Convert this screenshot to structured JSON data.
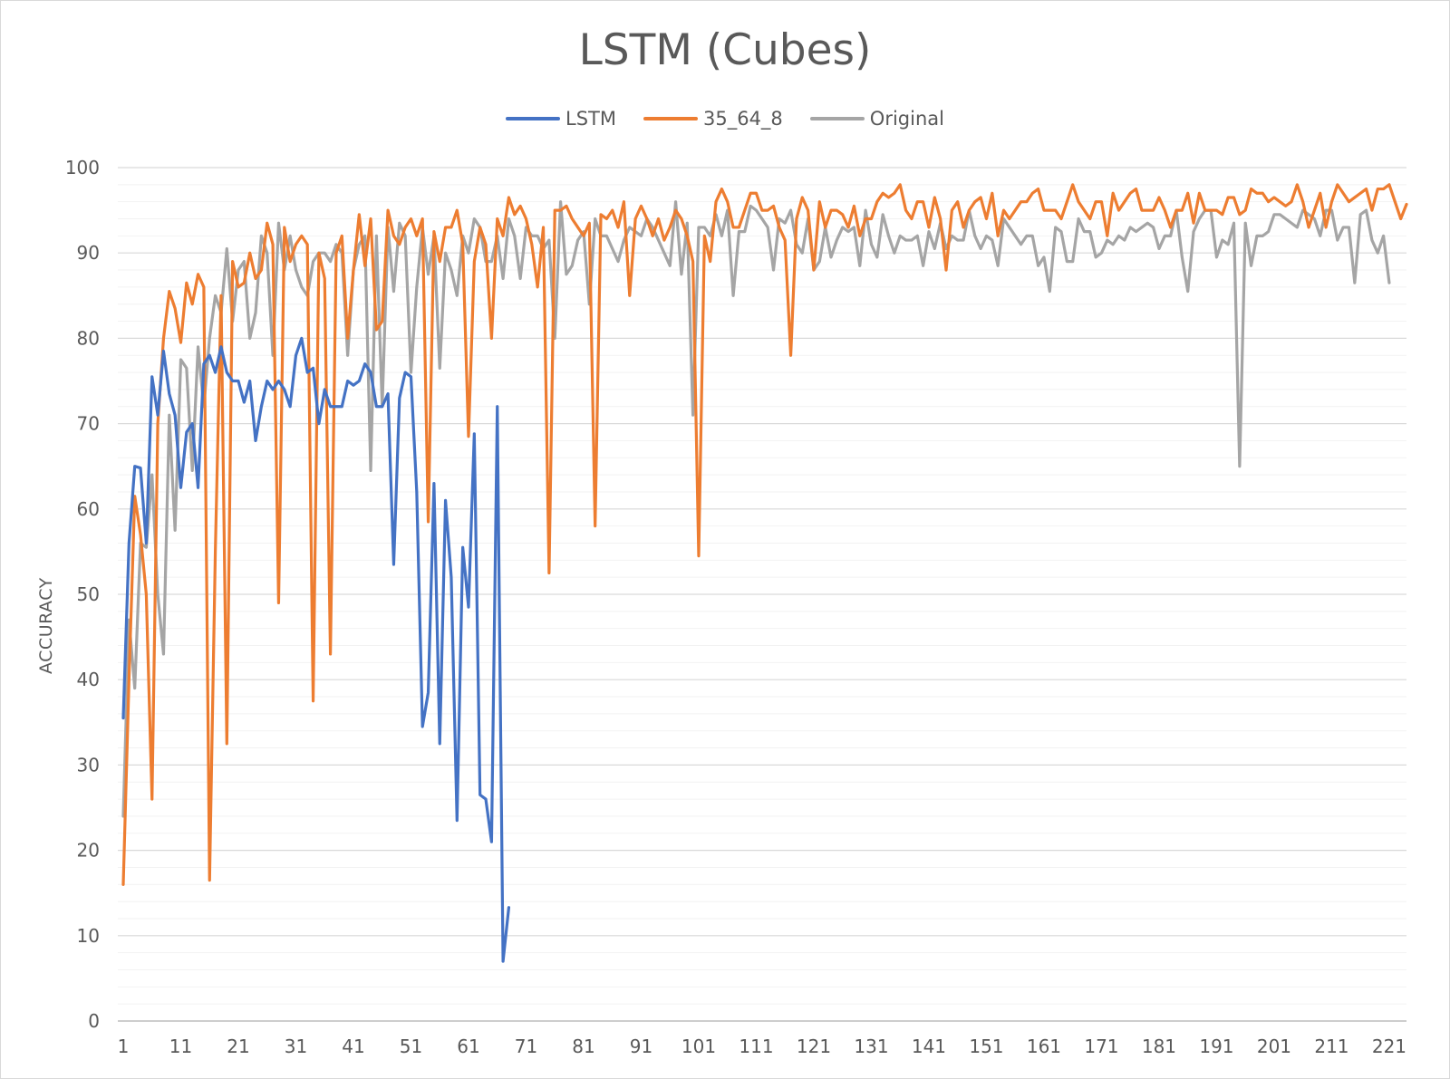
{
  "chart_data": {
    "type": "line",
    "title": "LSTM (Cubes)",
    "xlabel": "",
    "ylabel": "ACCURACY",
    "ylim": [
      0,
      100
    ],
    "xlim": [
      1,
      224
    ],
    "y_ticks": [
      0,
      10,
      20,
      30,
      40,
      50,
      60,
      70,
      80,
      90,
      100
    ],
    "x_tick_labels": [
      "1",
      "11",
      "21",
      "31",
      "41",
      "51",
      "61",
      "71",
      "81",
      "91",
      "101",
      "111",
      "121",
      "131",
      "141",
      "151",
      "161",
      "171",
      "181",
      "191",
      "201",
      "211",
      "221"
    ],
    "grid": "horizontal major and minor",
    "legend_position": "top",
    "series": [
      {
        "name": "LSTM",
        "color": "#4472C4",
        "x_start": 1,
        "values": [
          35.5,
          56,
          65,
          64.8,
          56,
          75.5,
          71,
          78.5,
          73.5,
          71,
          62.5,
          69,
          70,
          62.5,
          77,
          78,
          76,
          79,
          76,
          75,
          75,
          72.5,
          75,
          68,
          72,
          75,
          74,
          75,
          74,
          72,
          78,
          80,
          76,
          76.5,
          70,
          74,
          72,
          72,
          72,
          75,
          74.5,
          75,
          77,
          76,
          72,
          72,
          73.5,
          53.5,
          73,
          76,
          75.5,
          62,
          34.5,
          38.5,
          63,
          32.5,
          61,
          52,
          23.5,
          55.5,
          48.5,
          68.8,
          26.5,
          26,
          21,
          72,
          7,
          13.3
        ]
      },
      {
        "name": "35_64_8",
        "color": "#ED7D31",
        "x_start": 1,
        "values": [
          16,
          40,
          61.5,
          57,
          50,
          26,
          70,
          80,
          85.5,
          83.5,
          79.5,
          86.5,
          84,
          87.5,
          86,
          16.5,
          55,
          85,
          32.5,
          89,
          86,
          86.5,
          90,
          87,
          88,
          93.5,
          91,
          49,
          93,
          89,
          91,
          92,
          91,
          37.5,
          90,
          87,
          43,
          90,
          92,
          80,
          88,
          94.5,
          88.5,
          94,
          81,
          82,
          95,
          92,
          91,
          93,
          94,
          92,
          94,
          58.5,
          92.5,
          89,
          93,
          93,
          95,
          91,
          68.5,
          89,
          93,
          91,
          80,
          94,
          92,
          96.5,
          94.5,
          95.5,
          94,
          91,
          86,
          93,
          52.5,
          95,
          95,
          95.5,
          94,
          93,
          92,
          93.5,
          58,
          94.5,
          94,
          95,
          93,
          96,
          85,
          94,
          95.5,
          94,
          92,
          94,
          91.5,
          93,
          95,
          94,
          92,
          89,
          54.5,
          92,
          89,
          96,
          97.5,
          96,
          93,
          93,
          95,
          97,
          97,
          95,
          95,
          95.5,
          93,
          91.5,
          78,
          94,
          96.5,
          95,
          88,
          96,
          93,
          95,
          95,
          94.5,
          93,
          95.5,
          92,
          94,
          94,
          96,
          97,
          96.5,
          97,
          98,
          95,
          94,
          96,
          96,
          93,
          96.5,
          94,
          88,
          95,
          96,
          93,
          95,
          96,
          96.5,
          94,
          97,
          92,
          95,
          94,
          95,
          96,
          96,
          97,
          97.5,
          95,
          95,
          95,
          94,
          96,
          98,
          96,
          95,
          94,
          96,
          96,
          92,
          97,
          95,
          96,
          97,
          97.5,
          95,
          95,
          95,
          96.5,
          95,
          93,
          95,
          95,
          97,
          93.5,
          97,
          95,
          95,
          95,
          94.5,
          96.5,
          96.5,
          94.5,
          95,
          97.5,
          97,
          97,
          96,
          96.5,
          96,
          95.5,
          96,
          98,
          96,
          93,
          95,
          97,
          93,
          96,
          98,
          97,
          96,
          96.5,
          97,
          97.5,
          95,
          97.5,
          97.5,
          98,
          96,
          94,
          95.7
        ]
      },
      {
        "name": "Original",
        "color": "#A5A5A5",
        "x_start": 1,
        "values": [
          24,
          47,
          39,
          56,
          55.5,
          64,
          50,
          43,
          71,
          57.5,
          77.5,
          76.5,
          64.5,
          79,
          72,
          80,
          85,
          83,
          90.5,
          82,
          88,
          89,
          80,
          83,
          92,
          90,
          78,
          93.5,
          88,
          92,
          88,
          86,
          85,
          89,
          90,
          90,
          89,
          91,
          90,
          78,
          88,
          91,
          92,
          64.5,
          92,
          72,
          93,
          85.5,
          93.5,
          92,
          76,
          86,
          93,
          87.5,
          92,
          76.5,
          90,
          88,
          85,
          92,
          90,
          94,
          93,
          89,
          89,
          92,
          87,
          94,
          92,
          87,
          93,
          92,
          92,
          90.5,
          91.5,
          80,
          96,
          87.5,
          88.5,
          91.5,
          92.5,
          84,
          94,
          92,
          92,
          90.5,
          89,
          91.5,
          93,
          92.5,
          92,
          94,
          93,
          91.5,
          90,
          88.5,
          96,
          87.5,
          93.5,
          71,
          93,
          93,
          92,
          94.5,
          92,
          95,
          85,
          92.5,
          92.5,
          95.5,
          95,
          94,
          93,
          88,
          94,
          93.5,
          95,
          91,
          90,
          94,
          88,
          89,
          93,
          89.5,
          91.5,
          93,
          92.5,
          93,
          88.5,
          95,
          91,
          89.5,
          94.5,
          92,
          90,
          92,
          91.5,
          91.5,
          92,
          88.5,
          92.5,
          90.5,
          93.5,
          90.5,
          92,
          91.5,
          91.5,
          95,
          92,
          90.5,
          92,
          91.5,
          88.5,
          94,
          93,
          92,
          91,
          92,
          92,
          88.5,
          89.5,
          85.5,
          93,
          92.5,
          89,
          89,
          94,
          92.5,
          92.5,
          89.5,
          90,
          91.5,
          91,
          92,
          91.5,
          93,
          92.5,
          93,
          93.5,
          93,
          90.5,
          92,
          92,
          95,
          89.5,
          85.5,
          92.5,
          94,
          95,
          95,
          89.5,
          91.5,
          91,
          93.5,
          65,
          93.5,
          88.5,
          92,
          92,
          92.5,
          94.5,
          94.5,
          94,
          93.5,
          93,
          95,
          94.5,
          94,
          92,
          95,
          95,
          91.5,
          93,
          93,
          86.5,
          94.5,
          95,
          91.5,
          90,
          92,
          86.5
        ]
      }
    ]
  }
}
